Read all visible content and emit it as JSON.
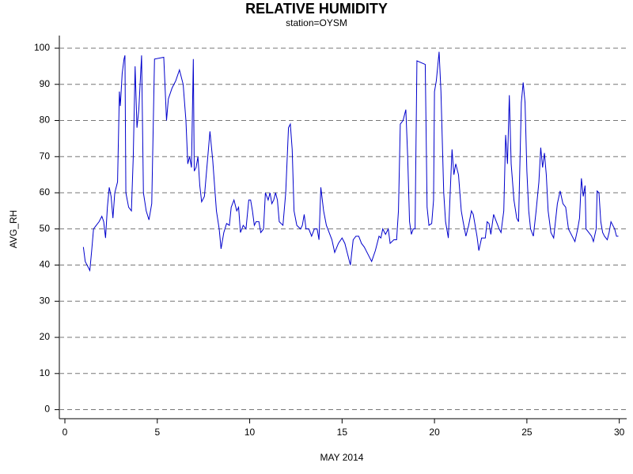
{
  "chart_data": {
    "type": "line",
    "title": "RELATIVE HUMIDITY",
    "subtitle": "station=OYSM",
    "xlabel": "MAY 2014",
    "ylabel": "AVG_RH",
    "color": "#0000cc",
    "grid": true,
    "xlim": [
      -0.3,
      30.4
    ],
    "ylim": [
      -2.5,
      103.5
    ],
    "xticks": [
      0,
      5,
      10,
      15,
      20,
      25,
      30
    ],
    "yticks": [
      0,
      10,
      20,
      30,
      40,
      50,
      60,
      70,
      80,
      90,
      100
    ],
    "x": [
      1.0,
      1.1,
      1.2,
      1.35,
      1.45,
      1.55,
      1.7,
      1.85,
      2.0,
      2.1,
      2.2,
      2.3,
      2.4,
      2.5,
      2.6,
      2.7,
      2.85,
      2.95,
      3.0,
      3.1,
      3.2,
      3.25,
      3.3,
      3.45,
      3.6,
      3.7,
      3.8,
      3.9,
      4.0,
      4.1,
      4.15,
      4.25,
      4.4,
      4.55,
      4.7,
      4.85,
      5.35,
      5.5,
      5.6,
      5.8,
      6.0,
      6.2,
      6.4,
      6.55,
      6.65,
      6.75,
      6.85,
      6.95,
      7.0,
      7.1,
      7.2,
      7.3,
      7.4,
      7.55,
      7.7,
      7.85,
      8.0,
      8.1,
      8.2,
      8.35,
      8.45,
      8.6,
      8.75,
      8.9,
      9.0,
      9.15,
      9.3,
      9.4,
      9.5,
      9.65,
      9.8,
      9.95,
      10.05,
      10.15,
      10.25,
      10.35,
      10.5,
      10.6,
      10.75,
      10.85,
      11.0,
      11.1,
      11.2,
      11.3,
      11.4,
      11.5,
      11.6,
      11.8,
      11.95,
      12.1,
      12.2,
      12.3,
      12.4,
      12.55,
      12.75,
      12.85,
      12.95,
      13.05,
      13.2,
      13.35,
      13.5,
      13.65,
      13.75,
      13.85,
      14.0,
      14.15,
      14.3,
      14.45,
      14.6,
      14.8,
      15.0,
      15.15,
      15.3,
      15.45,
      15.6,
      15.75,
      15.9,
      16.05,
      16.2,
      16.4,
      16.6,
      16.8,
      17.0,
      17.1,
      17.2,
      17.35,
      17.5,
      17.6,
      17.8,
      17.95,
      18.05,
      18.15,
      18.3,
      18.45,
      18.55,
      18.65,
      18.75,
      18.85,
      18.95,
      19.05,
      19.5,
      19.6,
      19.7,
      19.85,
      19.95,
      20.0,
      20.1,
      20.25,
      20.35,
      20.5,
      20.6,
      20.75,
      20.85,
      20.95,
      21.05,
      21.15,
      21.3,
      21.45,
      21.55,
      21.7,
      21.85,
      22.0,
      22.1,
      22.3,
      22.4,
      22.55,
      22.75,
      22.85,
      22.95,
      23.05,
      23.2,
      23.35,
      23.5,
      23.6,
      23.75,
      23.85,
      23.95,
      24.05,
      24.15,
      24.3,
      24.45,
      24.55,
      24.7,
      24.8,
      24.9,
      25.0,
      25.1,
      25.2,
      25.35,
      25.5,
      25.65,
      25.75,
      25.85,
      25.95,
      26.05,
      26.15,
      26.3,
      26.45,
      26.65,
      26.8,
      26.95,
      27.1,
      27.25,
      27.45,
      27.6,
      27.75,
      27.85,
      27.95,
      28.05,
      28.15,
      28.2,
      28.35,
      28.5,
      28.6,
      28.75,
      28.8,
      28.9,
      29.0,
      29.1,
      29.2,
      29.35,
      29.45,
      29.55,
      29.65,
      29.75,
      29.85,
      29.95
    ],
    "values": [
      45,
      41,
      40,
      38.5,
      44,
      50,
      51,
      52,
      53.5,
      52,
      47.5,
      56,
      61.5,
      59,
      53,
      60,
      63,
      88,
      84,
      93,
      97,
      98,
      60,
      56,
      55,
      70,
      95,
      78,
      83,
      93,
      98,
      60,
      55,
      52.5,
      57,
      97,
      97.5,
      80,
      86,
      89,
      91,
      94,
      90,
      80,
      68,
      70,
      67,
      97,
      66,
      67,
      70,
      62,
      57.5,
      59,
      68,
      77,
      69,
      62,
      55,
      50,
      44.5,
      49,
      51.5,
      51,
      56,
      58,
      55,
      56,
      49,
      51,
      50,
      58,
      58,
      55,
      51,
      52,
      52,
      49,
      50,
      60,
      58,
      60,
      57,
      58,
      60,
      58,
      52,
      51,
      60,
      78,
      79,
      72,
      55,
      51,
      50,
      51,
      54,
      50,
      50,
      48,
      50,
      50,
      47,
      61.5,
      55,
      51,
      49,
      47,
      43.5,
      46,
      47.5,
      46,
      43,
      40,
      47,
      48,
      48,
      46,
      45,
      43,
      41,
      44,
      48,
      47.5,
      50,
      48.5,
      50,
      46,
      47,
      47,
      55,
      79,
      80,
      83,
      70,
      52,
      48.5,
      50,
      50,
      96.5,
      95.5,
      56,
      51,
      51.5,
      58,
      88,
      91,
      99,
      88,
      60,
      52,
      47.5,
      60,
      72,
      65,
      68,
      65,
      55,
      52,
      48,
      51,
      55,
      54,
      48,
      44,
      47.5,
      47.5,
      52,
      51.5,
      48.5,
      54,
      52,
      50,
      49,
      55,
      76,
      68,
      87,
      68,
      58,
      53,
      52,
      85,
      90.5,
      85,
      66,
      55,
      50,
      48,
      55,
      63,
      72.5,
      67,
      71,
      65,
      55,
      49,
      47.5,
      57,
      60.5,
      57,
      56,
      50,
      48,
      46.5,
      50,
      53,
      64,
      59,
      62,
      50,
      49,
      48,
      46.5,
      50,
      60.5,
      60,
      52,
      49,
      48,
      47,
      49,
      52,
      51,
      50,
      48,
      48
    ]
  }
}
